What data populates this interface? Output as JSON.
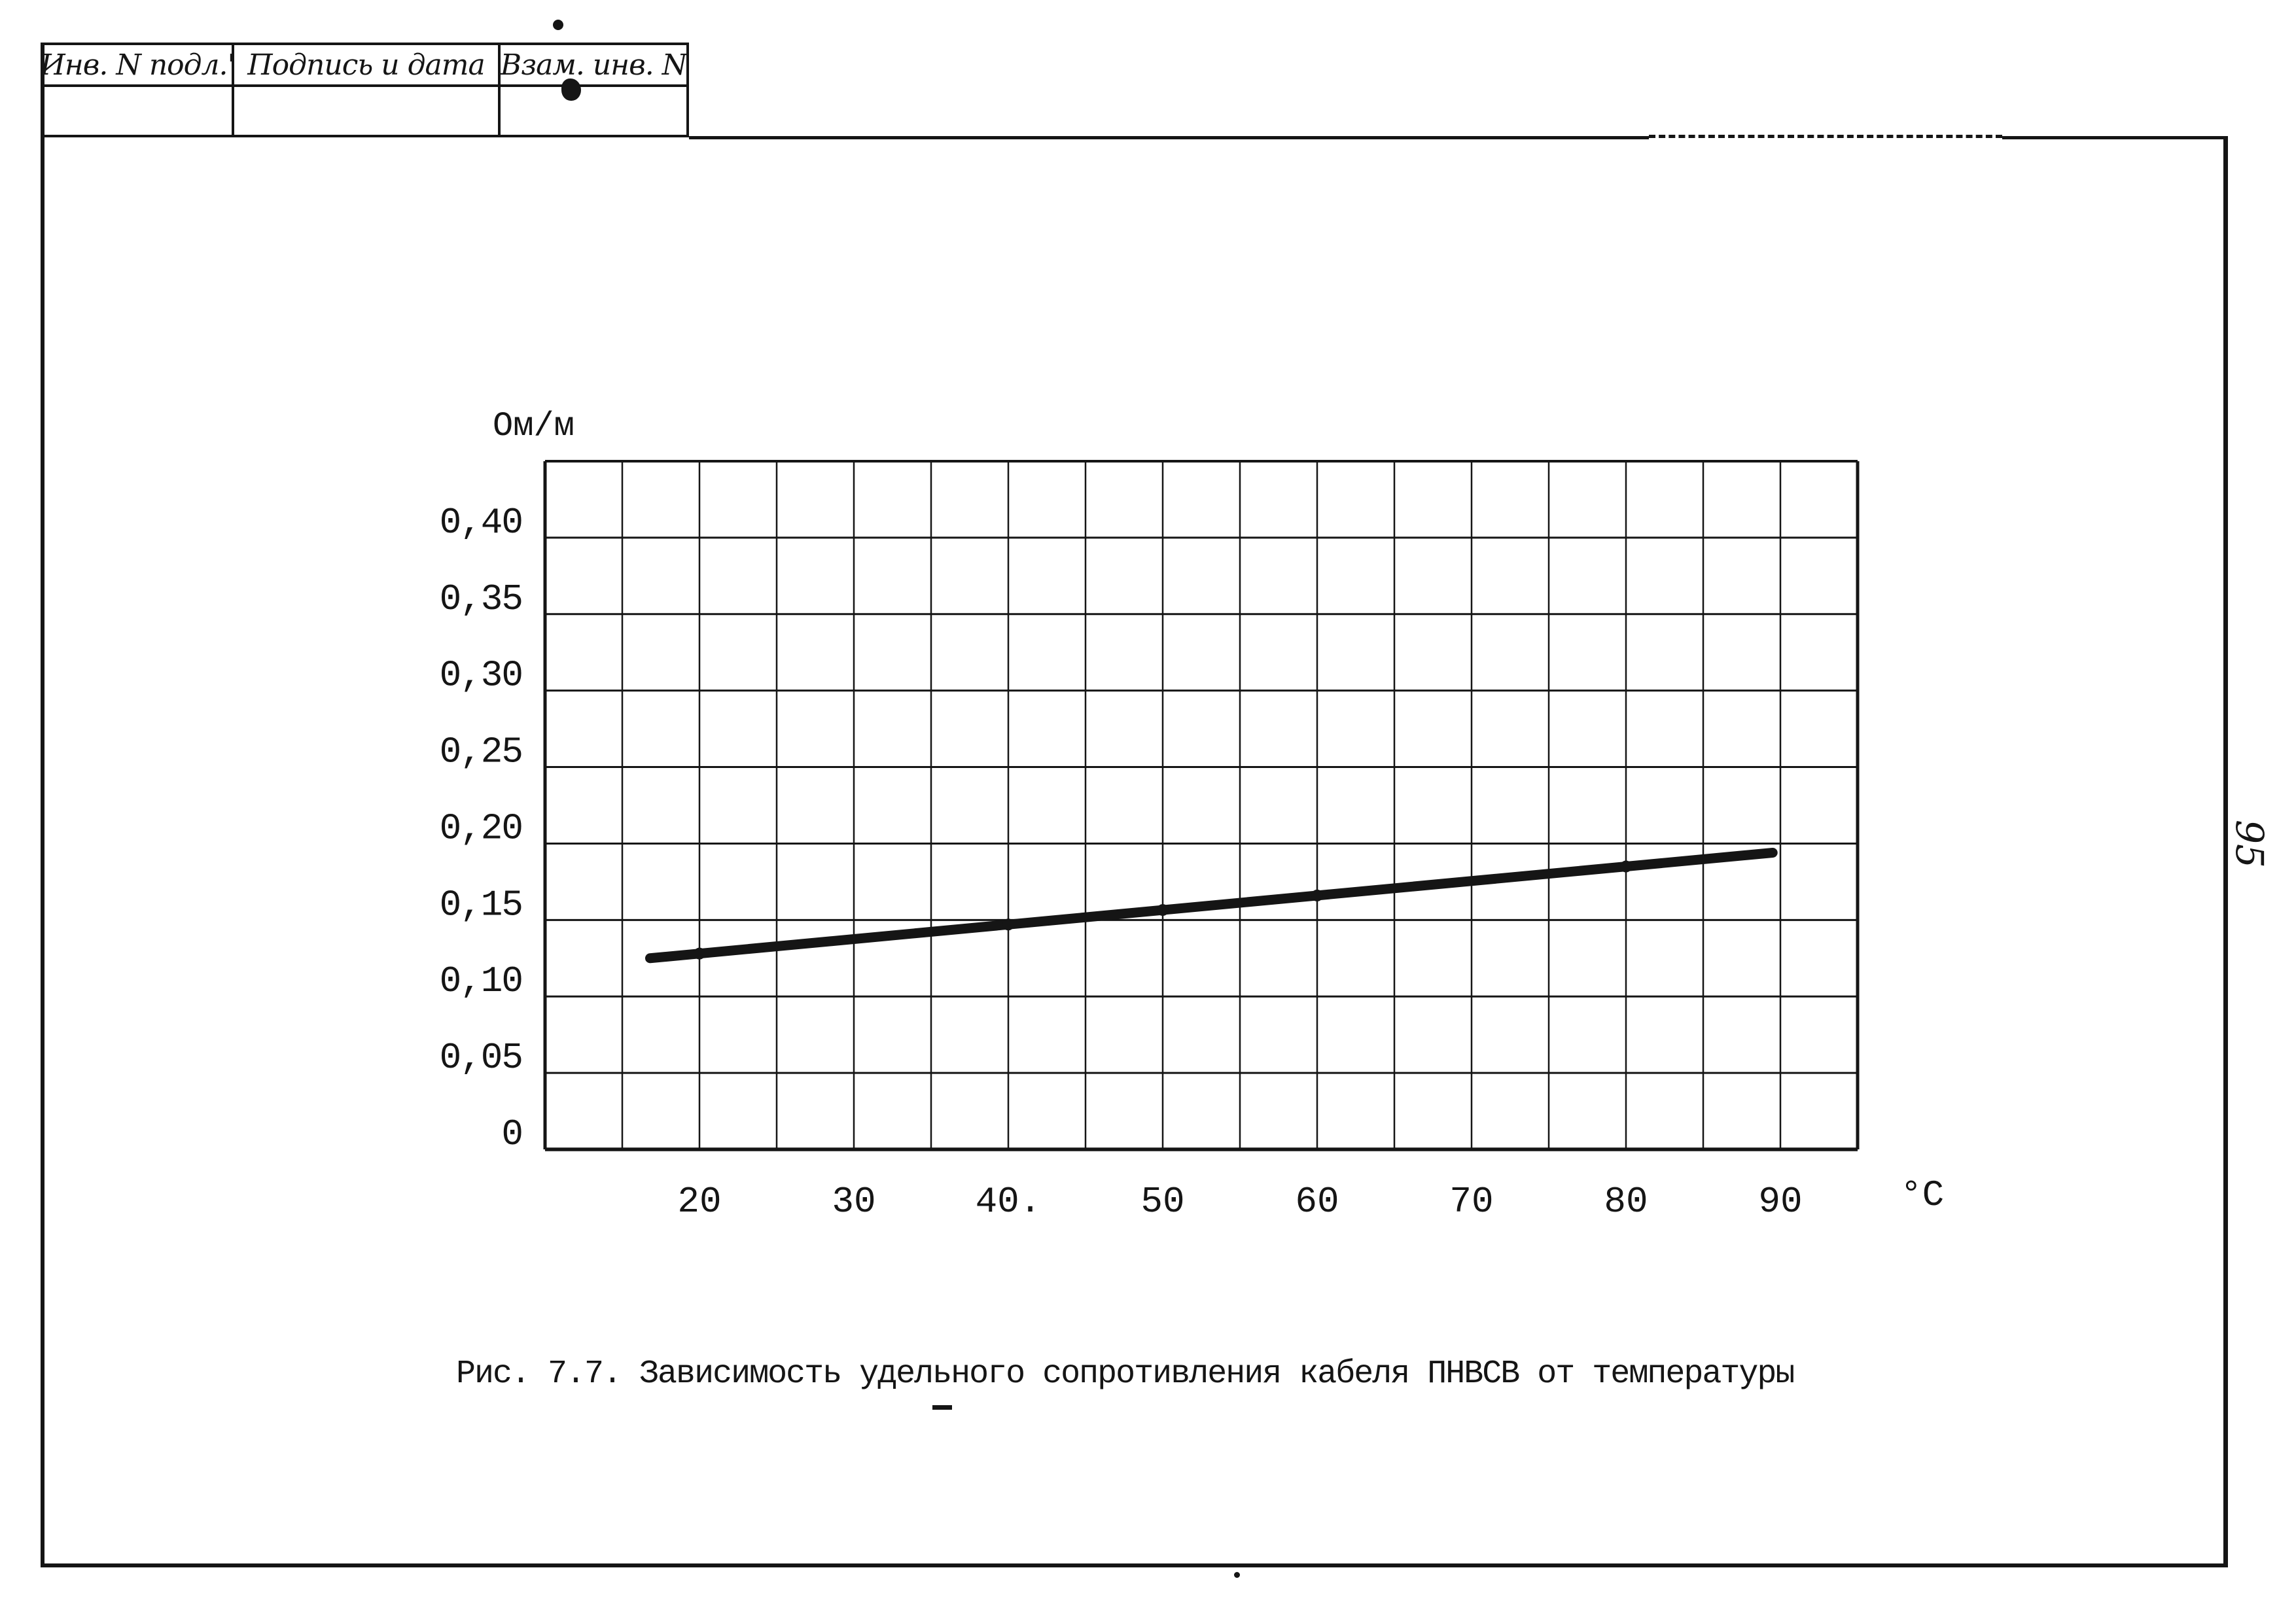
{
  "page": {
    "background": "#ffffff",
    "ink_color": "#151515",
    "sheet_number": "95"
  },
  "stamp_table": {
    "columns": [
      {
        "label": "Инв. N подл.'"
      },
      {
        "label": "Подпись и дата"
      },
      {
        "label": "Взам. инв. N"
      }
    ]
  },
  "caption": {
    "text": "Рис. 7.7. Зависимость удельного сопротивления кабеля ПНВСВ от температуры"
  },
  "chart_data": {
    "type": "line",
    "title": "Рис. 7.7. Зависимость удельного сопротивления кабеля ПНВСВ от температуры",
    "ylabel": "Ом/м",
    "xlabel": "°C",
    "xlim": [
      10,
      95
    ],
    "ylim": [
      0,
      0.45
    ],
    "x_grid_step": 5,
    "y_grid_step": 0.05,
    "grid": "on",
    "legend": "none",
    "x_ticks": [
      {
        "value": 20,
        "label": "20"
      },
      {
        "value": 30,
        "label": "30"
      },
      {
        "value": 40,
        "label": "40."
      },
      {
        "value": 50,
        "label": "50"
      },
      {
        "value": 60,
        "label": "60"
      },
      {
        "value": 70,
        "label": "70"
      },
      {
        "value": 80,
        "label": "80"
      },
      {
        "value": 90,
        "label": "90"
      }
    ],
    "y_ticks": [
      {
        "value": 0.4,
        "label": "0,40"
      },
      {
        "value": 0.35,
        "label": "0,35"
      },
      {
        "value": 0.3,
        "label": "0,30"
      },
      {
        "value": 0.25,
        "label": "0,25"
      },
      {
        "value": 0.2,
        "label": "0,20"
      },
      {
        "value": 0.15,
        "label": "0,15"
      },
      {
        "value": 0.1,
        "label": "0,10"
      },
      {
        "value": 0.05,
        "label": "0,05"
      },
      {
        "value": 0,
        "label": "0"
      }
    ],
    "series": [
      {
        "name": "Удельное сопротивление кабеля ПНВСВ",
        "x": [
          20,
          30,
          40,
          50,
          60,
          70,
          80,
          90
        ],
        "values": [
          0.128,
          0.137,
          0.147,
          0.156,
          0.166,
          0.175,
          0.184,
          0.194
        ],
        "line_start": [
          16.8,
          0.125
        ],
        "line_end": [
          89.5,
          0.194
        ],
        "marker_x": [
          20,
          40,
          50,
          60,
          80
        ]
      }
    ]
  }
}
